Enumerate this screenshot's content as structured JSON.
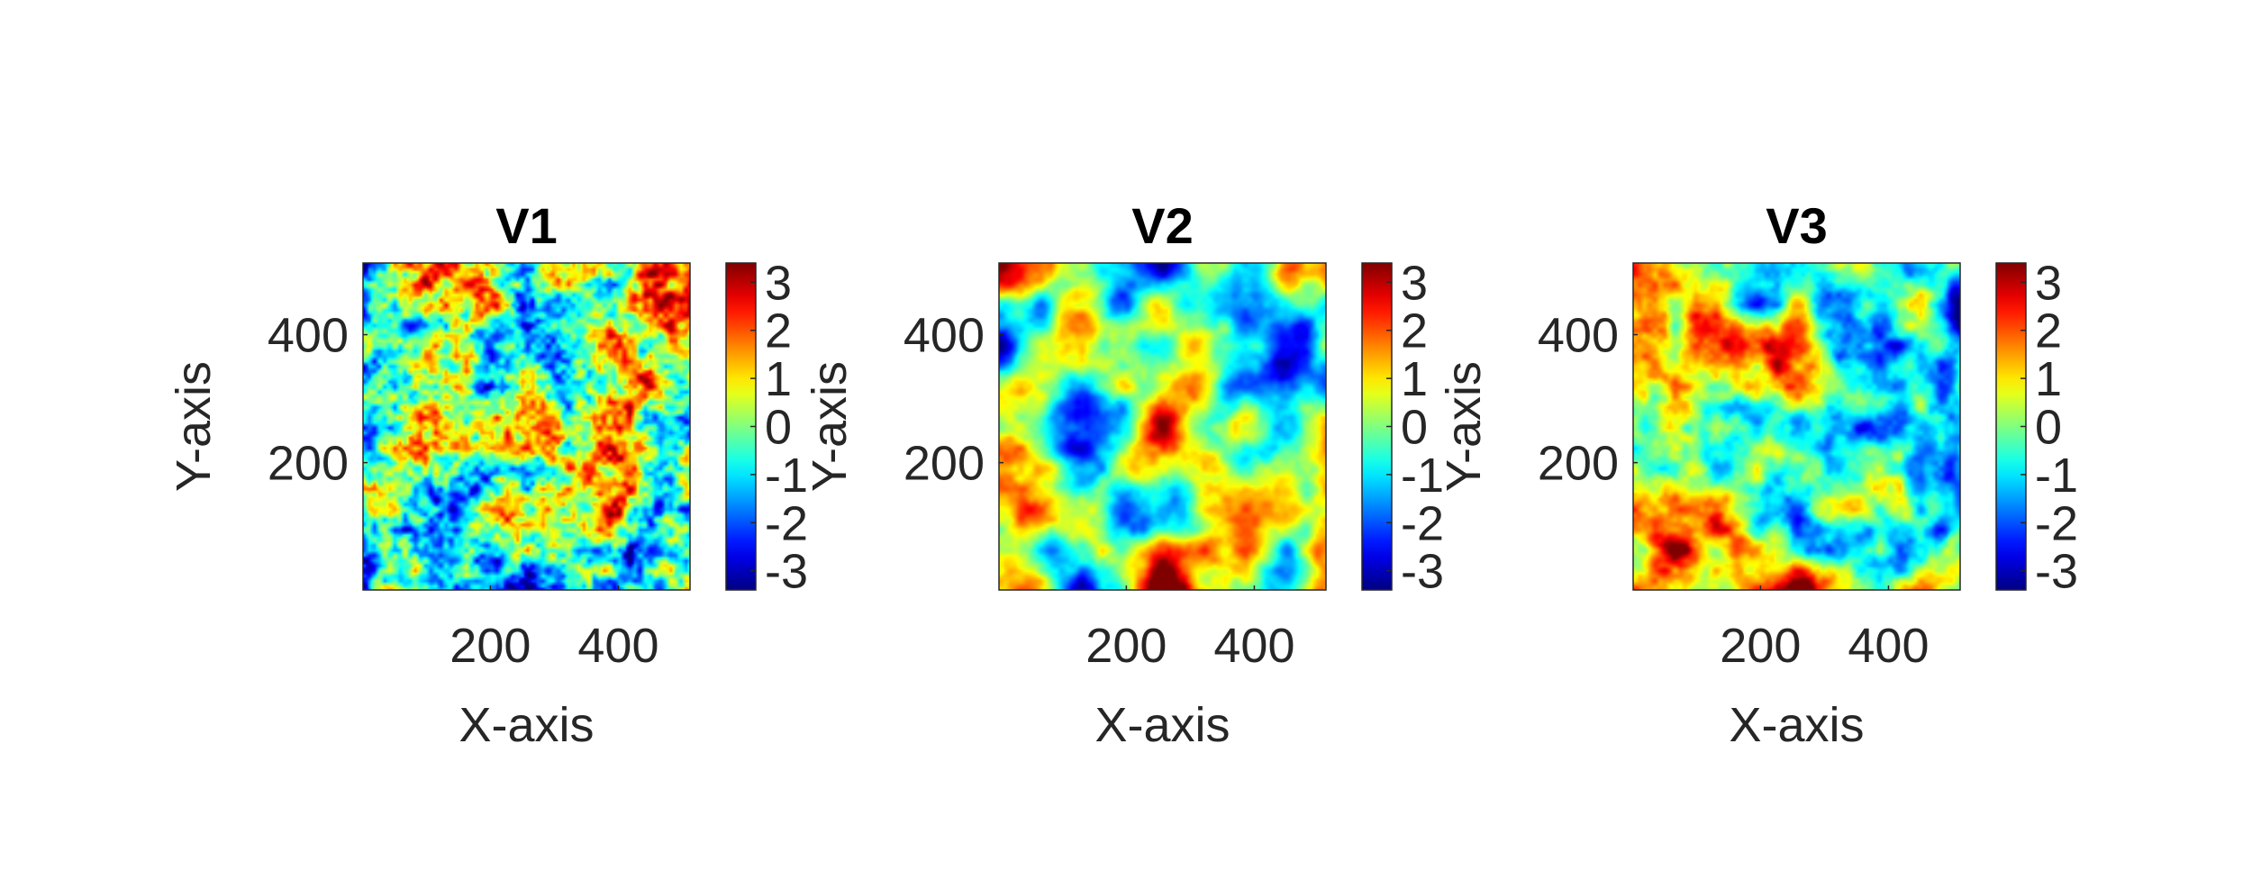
{
  "chart_data": [
    {
      "type": "heatmap",
      "title": "V1",
      "xlabel": "X-axis",
      "ylabel": "Y-axis",
      "xlim": [
        1,
        512
      ],
      "ylim": [
        1,
        512
      ],
      "xticks": [
        200,
        400
      ],
      "yticks": [
        200,
        400
      ],
      "colormap": "jet",
      "clim": [
        -3.4,
        3.4
      ],
      "colorbar_ticks": [
        -3,
        -2,
        -1,
        0,
        1,
        2,
        3
      ],
      "texture": "fine",
      "seed": 11
    },
    {
      "type": "heatmap",
      "title": "V2",
      "xlabel": "X-axis",
      "ylabel": "Y-axis",
      "xlim": [
        1,
        512
      ],
      "ylim": [
        1,
        512
      ],
      "xticks": [
        200,
        400
      ],
      "yticks": [
        200,
        400
      ],
      "colormap": "jet",
      "clim": [
        -3.4,
        3.4
      ],
      "colorbar_ticks": [
        -3,
        -2,
        -1,
        0,
        1,
        2,
        3
      ],
      "texture": "smooth",
      "seed": 23
    },
    {
      "type": "heatmap",
      "title": "V3",
      "xlabel": "X-axis",
      "ylabel": "Y-axis",
      "xlim": [
        1,
        512
      ],
      "ylim": [
        1,
        512
      ],
      "xticks": [
        200,
        400
      ],
      "yticks": [
        200,
        400
      ],
      "colormap": "jet",
      "clim": [
        -3.4,
        3.4
      ],
      "colorbar_ticks": [
        -3,
        -2,
        -1,
        0,
        1,
        2,
        3
      ],
      "texture": "medium",
      "seed": 37
    }
  ]
}
